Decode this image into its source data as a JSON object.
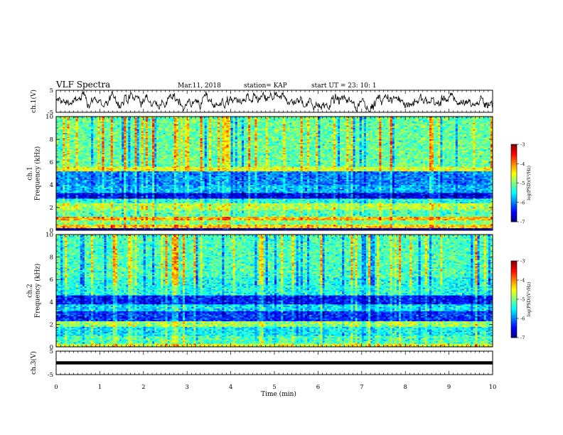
{
  "chart_data": {
    "type": "heatmap",
    "title": "VLF Spectra",
    "date": "Mar.11, 2018",
    "station": "station= KAP",
    "start": "start  UT =   23: 10: 1",
    "xlabel": "Time  (min)",
    "xlim": [
      0,
      10
    ],
    "xticks": [
      "0",
      "1",
      "2",
      "3",
      "4",
      "5",
      "6",
      "7",
      "8",
      "9",
      "10"
    ],
    "waveforms": [
      {
        "ylabel": "ch.1(V)",
        "ylim": [
          -5,
          5
        ],
        "yticks": [
          "5",
          "-5"
        ],
        "kind": "noise"
      },
      {
        "ylabel": "ch.3(V)",
        "ylim": [
          -5,
          5
        ],
        "yticks": [
          "5",
          "-5"
        ],
        "kind": "flat",
        "level": 0
      }
    ],
    "spectrograms": [
      {
        "ylabel": "ch.1\nFrequency  (kHz)",
        "ylim": [
          0,
          10
        ],
        "yticks": [
          "0",
          "2",
          "4",
          "6",
          "8",
          "10"
        ],
        "colorbar": {
          "label": "log(PSD)(V²/Hz)",
          "range": [
            -7,
            -3
          ],
          "ticks": [
            "-3",
            "-4",
            "-5",
            "-6",
            "-7"
          ]
        },
        "bands": [
          {
            "f": [
              0.0,
              0.2
            ],
            "v": -6.8
          },
          {
            "f": [
              0.2,
              0.5
            ],
            "v": -4.3
          },
          {
            "f": [
              0.5,
              0.9
            ],
            "v": -5.0
          },
          {
            "f": [
              0.9,
              1.2
            ],
            "v": -4.2
          },
          {
            "f": [
              1.2,
              1.8
            ],
            "v": -5.2
          },
          {
            "f": [
              1.8,
              2.4
            ],
            "v": -4.8
          },
          {
            "f": [
              2.4,
              2.8
            ],
            "v": -5.4
          },
          {
            "f": [
              2.8,
              3.3
            ],
            "v": -6.6
          },
          {
            "f": [
              3.3,
              4.0
            ],
            "v": -5.8
          },
          {
            "f": [
              4.0,
              5.2
            ],
            "v": -6.0
          },
          {
            "f": [
              5.2,
              5.6
            ],
            "v": -4.6
          },
          {
            "f": [
              5.6,
              10.0
            ],
            "v": -5.1
          }
        ]
      },
      {
        "ylabel": "ch.2\nFrequency  (kHz)",
        "ylim": [
          0,
          10
        ],
        "yticks": [
          "0",
          "2",
          "4",
          "6",
          "8",
          "10"
        ],
        "colorbar": {
          "label": "log(PSD)(V²/Hz)",
          "range": [
            -7,
            -3
          ],
          "ticks": [
            "-3",
            "-4",
            "-5",
            "-6",
            "-7"
          ]
        },
        "bands": [
          {
            "f": [
              0.0,
              0.3
            ],
            "v": -4.6
          },
          {
            "f": [
              0.3,
              1.0
            ],
            "v": -5.2
          },
          {
            "f": [
              1.0,
              1.8
            ],
            "v": -5.5
          },
          {
            "f": [
              1.8,
              2.3
            ],
            "v": -4.9
          },
          {
            "f": [
              2.3,
              3.2
            ],
            "v": -6.3
          },
          {
            "f": [
              3.2,
              3.8
            ],
            "v": -5.6
          },
          {
            "f": [
              3.8,
              4.6
            ],
            "v": -6.4
          },
          {
            "f": [
              4.6,
              6.2
            ],
            "v": -5.4
          },
          {
            "f": [
              6.2,
              10.0
            ],
            "v": -5.2
          }
        ]
      }
    ]
  }
}
